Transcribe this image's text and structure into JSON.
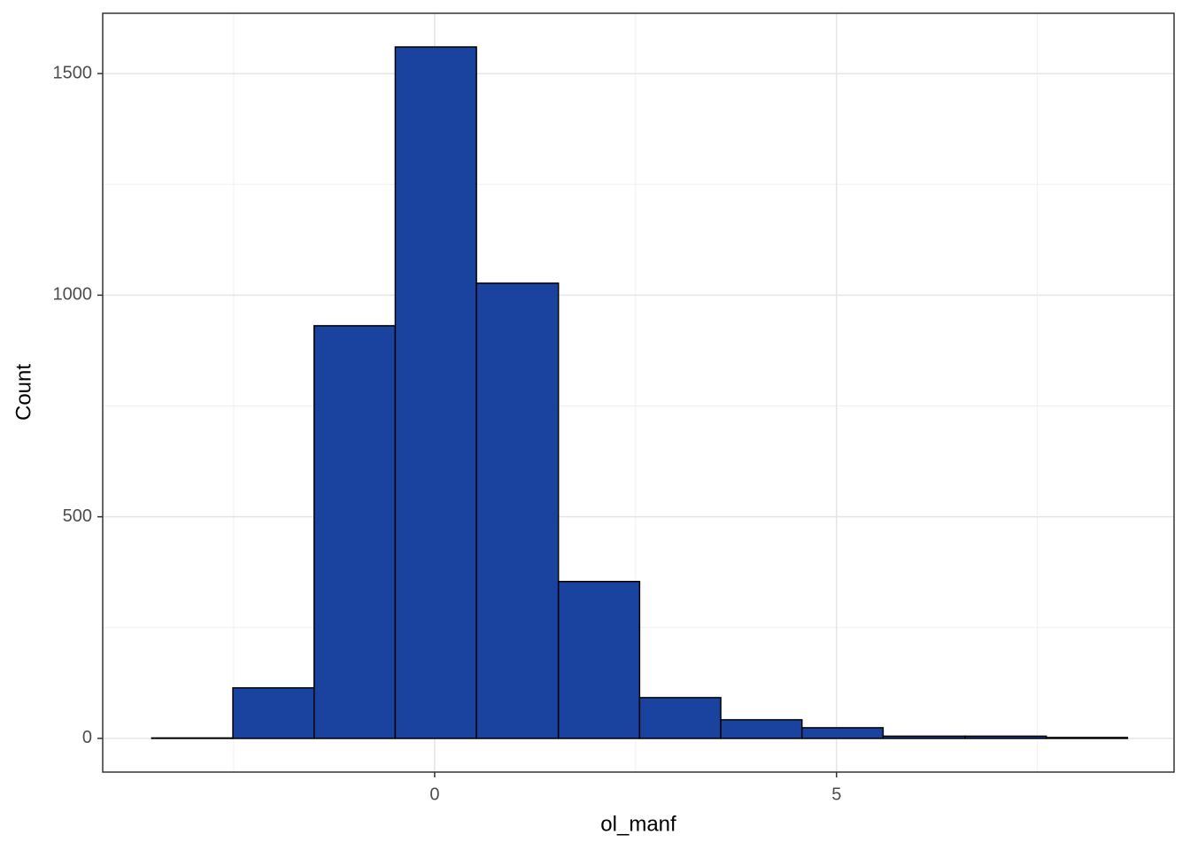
{
  "chart_data": {
    "type": "histogram",
    "x_label": "ol_manf",
    "y_label": "Count",
    "bins": [
      -3.52,
      -2.51,
      -1.5,
      -0.49,
      0.52,
      1.54,
      2.55,
      3.56,
      4.57,
      5.58,
      6.6,
      7.61,
      8.62
    ],
    "values": [
      1,
      114,
      931,
      1560,
      1027,
      354,
      92,
      42,
      24,
      5,
      5,
      2
    ],
    "color": "#1a43a0",
    "edge_color": "#000000",
    "xlim": [
      -4.13,
      9.2
    ],
    "xticks": [
      0,
      5
    ],
    "ylim": [
      -76,
      1636
    ],
    "yticks": [
      0,
      500,
      1000,
      1500
    ],
    "grid": true,
    "x_minor_grid": [
      -2.5,
      2.5,
      7.5
    ],
    "y_minor_grid": [
      250,
      750,
      1250
    ]
  }
}
